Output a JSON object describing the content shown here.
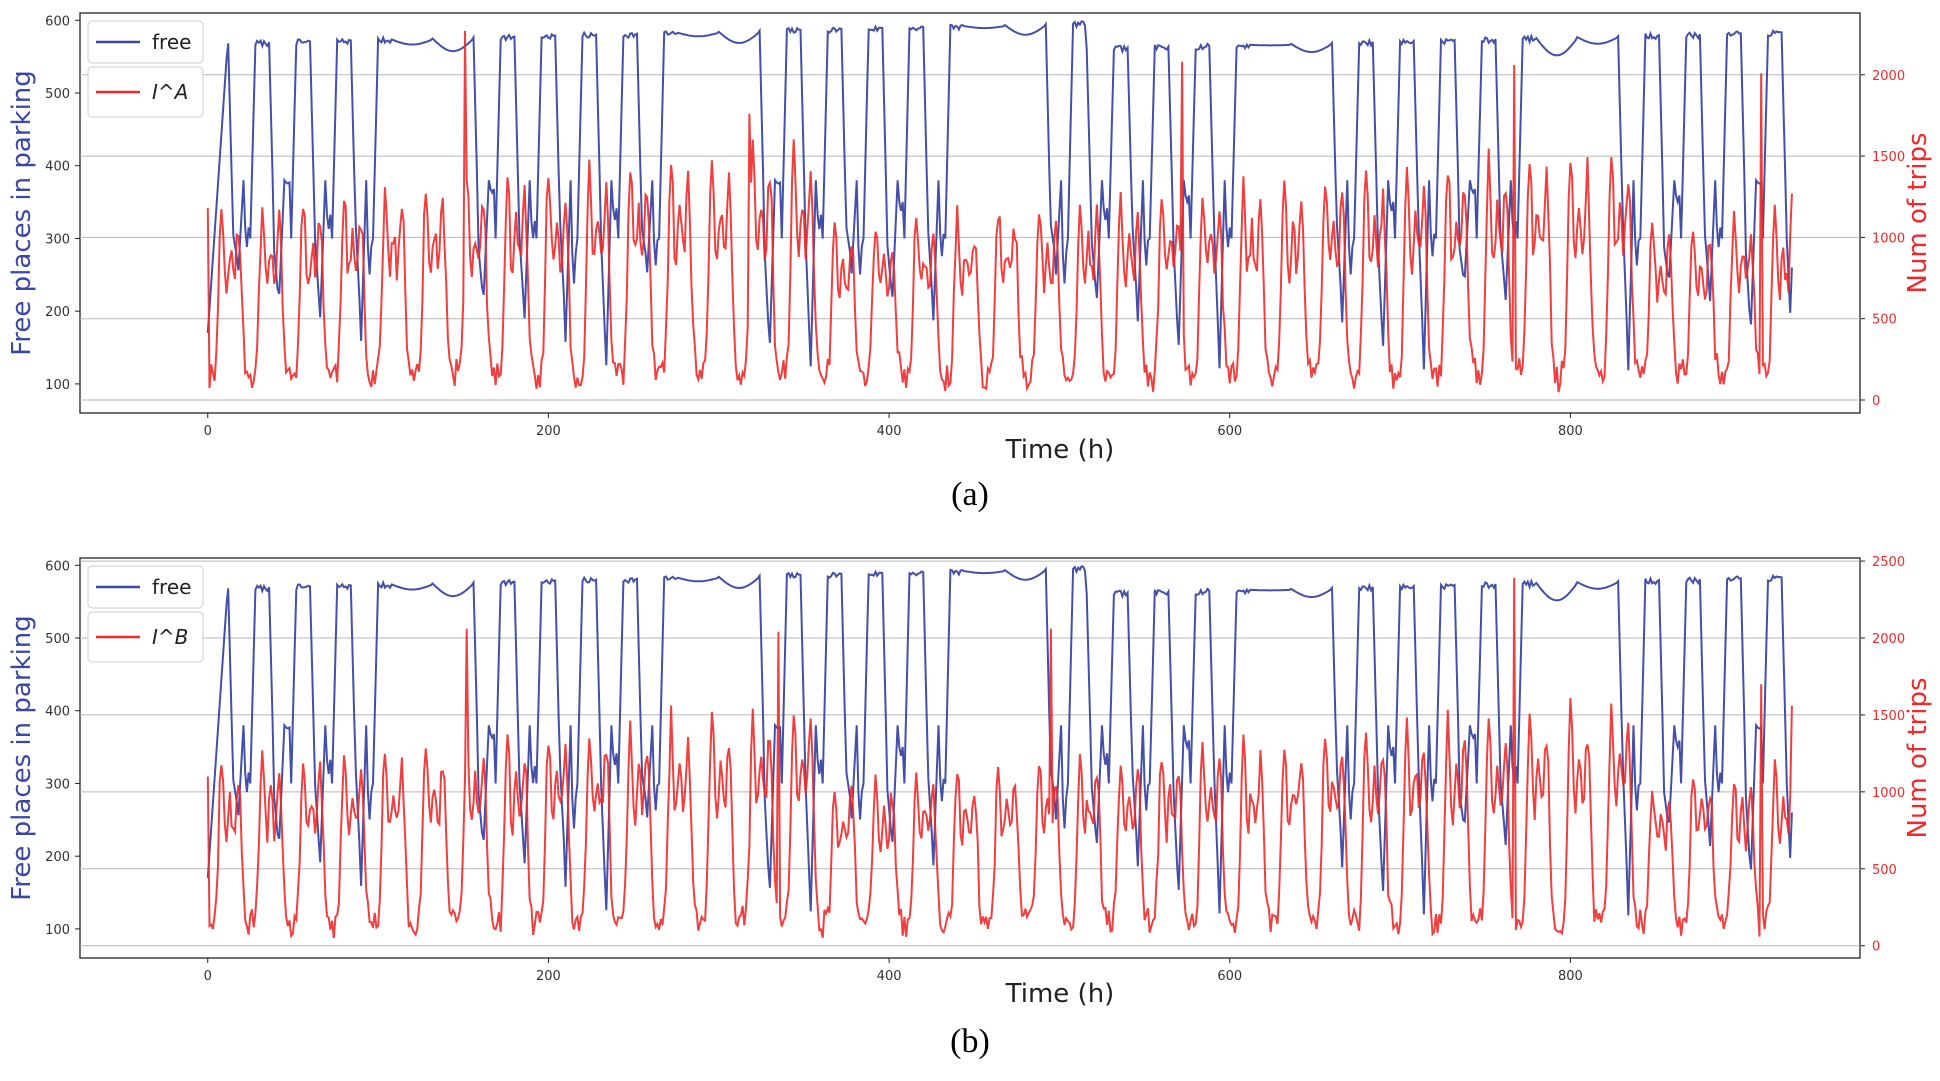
{
  "chart_data": [
    {
      "type": "line",
      "caption": "(a)",
      "xlabel": "Time (h)",
      "ylabel_left": "Free places in parking",
      "ylabel_right": "Num of trips",
      "xlim": [
        -75,
        970
      ],
      "ylim_left": [
        60,
        610
      ],
      "ylim_right": [
        -80,
        2380
      ],
      "x_ticks": [
        0,
        200,
        400,
        600,
        800
      ],
      "y_left_ticks": [
        100,
        200,
        300,
        400,
        500,
        600
      ],
      "y_right_ticks": [
        0,
        500,
        1000,
        1500,
        2000
      ],
      "grid_right": true,
      "legend": [
        "free",
        "I^A"
      ],
      "legend_position": "top-left",
      "series": [
        {
          "name": "free",
          "axis": "left",
          "color": "#3a47a3",
          "kind": "free",
          "start": 170,
          "end": 260
        },
        {
          "name": "I^A",
          "axis": "right",
          "color": "#ee2a2a",
          "kind": "trips",
          "start": 1180,
          "end": 1270,
          "spikes": [
            [
              151,
              2270
            ],
            [
              318,
              1760
            ],
            [
              572,
              2080
            ],
            [
              767,
              2060
            ],
            [
              912,
              2010
            ]
          ]
        }
      ]
    },
    {
      "type": "line",
      "caption": "(b)",
      "xlabel": "Time (h)",
      "ylabel_left": "Free places in parking",
      "ylabel_right": "Num of trips",
      "xlim": [
        -75,
        970
      ],
      "ylim_left": [
        60,
        610
      ],
      "ylim_right": [
        -80,
        2520
      ],
      "x_ticks": [
        0,
        200,
        400,
        600,
        800
      ],
      "y_left_ticks": [
        100,
        200,
        300,
        400,
        500,
        600
      ],
      "y_right_ticks": [
        0,
        500,
        1000,
        1500,
        2000,
        2500
      ],
      "grid_right": true,
      "legend": [
        "free",
        "I^B"
      ],
      "legend_position": "top-left",
      "series": [
        {
          "name": "free",
          "axis": "left",
          "color": "#3a47a3",
          "kind": "free",
          "start": 170,
          "end": 260
        },
        {
          "name": "I^B",
          "axis": "right",
          "color": "#ee2a2a",
          "kind": "trips",
          "start": 1100,
          "end": 1560,
          "spikes": [
            [
              152,
              2060
            ],
            [
              335,
              2040
            ],
            [
              495,
              2060
            ],
            [
              767,
              2390
            ],
            [
              912,
              1700
            ]
          ]
        }
      ]
    }
  ]
}
